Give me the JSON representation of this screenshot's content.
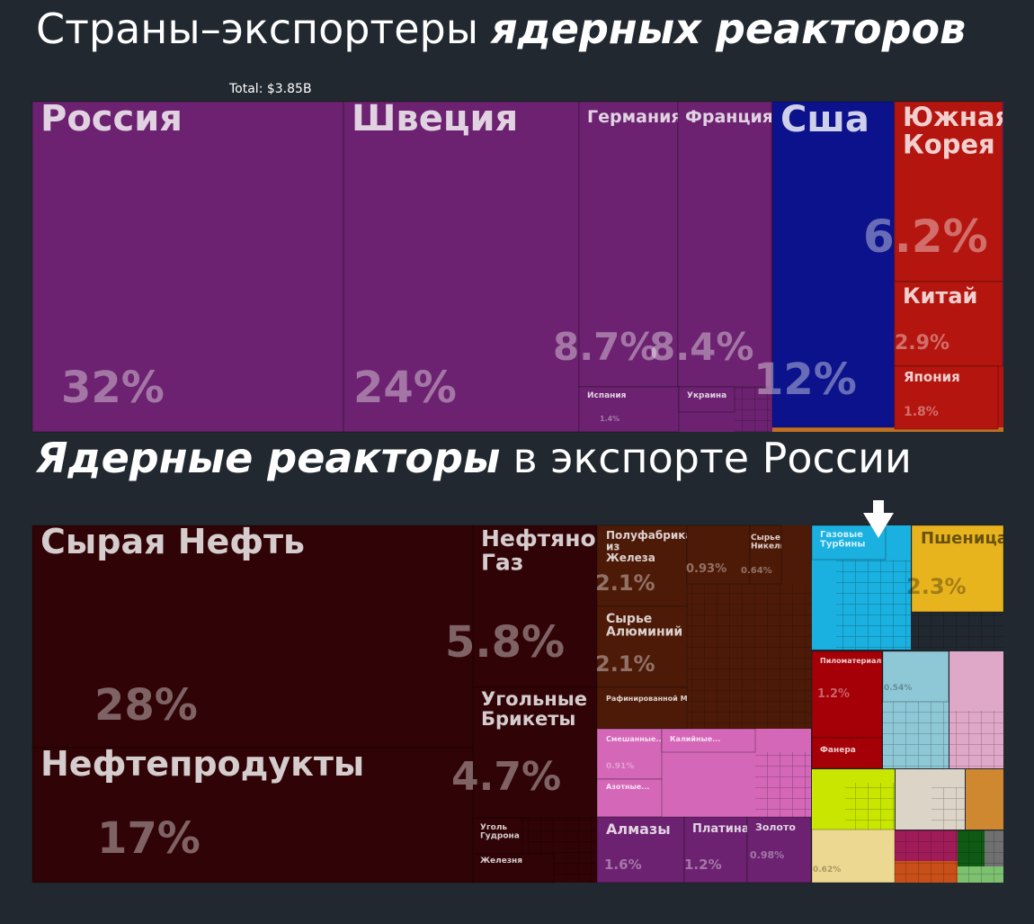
{
  "chart_data": [
    {
      "type": "treemap",
      "title": [
        "Страны–экспортеры",
        "ядерных реакторов"
      ],
      "title_emphasis": [
        false,
        true
      ],
      "total": "Total: $3.85B",
      "items": [
        {
          "name": "Россия",
          "value": 32,
          "value_label": "32%",
          "color": "#6c2270"
        },
        {
          "name": "Швеция",
          "value": 24,
          "value_label": "24%",
          "color": "#6c2270"
        },
        {
          "name": "Германия",
          "value": 8.7,
          "value_label": "8.7%",
          "color": "#6c2270"
        },
        {
          "name": "Франция",
          "value": 8.4,
          "value_label": "8.4%",
          "color": "#6c2270"
        },
        {
          "name": "Испания",
          "value": 1.4,
          "value_label": "1.4%",
          "color": "#6c2270"
        },
        {
          "name": "Украина",
          "value": 0.8,
          "color": "#6c2270"
        },
        {
          "name": "Сша",
          "value": 12,
          "value_label": "12%",
          "color": "#0c128c"
        },
        {
          "name": "Южная Корея",
          "value": 6.2,
          "value_label": "6.2%",
          "color": "#b5150f"
        },
        {
          "name": "Китай",
          "value": 2.9,
          "value_label": "2.9%",
          "color": "#b5150f"
        },
        {
          "name": "Япония",
          "value": 1.8,
          "value_label": "1.8%",
          "color": "#b5150f"
        }
      ]
    },
    {
      "type": "treemap",
      "title": [
        "Ядерные реакторы",
        "в экспорте России"
      ],
      "title_emphasis": [
        true,
        false
      ],
      "items": [
        {
          "name": "Сырая Нефть",
          "value": 28,
          "value_label": "28%",
          "color": "#300306"
        },
        {
          "name": "Нефтепродукты",
          "value": 17,
          "value_label": "17%",
          "color": "#300306"
        },
        {
          "name": "Нефтяной Газ",
          "value": 5.8,
          "value_label": "5.8%",
          "color": "#300306"
        },
        {
          "name": "Угольные Брикеты",
          "value": 4.7,
          "value_label": "4.7%",
          "color": "#300306"
        },
        {
          "name": "Уголь Гудрона",
          "value": 0.5,
          "color": "#300306"
        },
        {
          "name": "Железня",
          "value": 0.4,
          "color": "#300306"
        },
        {
          "name": "Полуфабрикаты из Железа",
          "value": 2.1,
          "value_label": "2.1%",
          "color": "#4e1a08"
        },
        {
          "name": null,
          "value": 0.93,
          "value_label": "0.93%",
          "color": "#4e1a08"
        },
        {
          "name": "Сырье Никель",
          "value": 0.64,
          "value_label": "0.64%",
          "color": "#4e1a08"
        },
        {
          "name": "Сырье Алюминий",
          "value": 2.1,
          "value_label": "2.1%",
          "color": "#4e1a08"
        },
        {
          "name": "Рафинированной Меди",
          "value": 0.5,
          "color": "#4e1a08"
        },
        {
          "name": "Газовые Турбины",
          "value": 0.3,
          "color": "#1ab0e0"
        },
        {
          "name": "Пшеница",
          "value": 2.3,
          "value_label": "2.3%",
          "color": "#e8b41e"
        },
        {
          "name": "Пиломатериалы",
          "value": 1.2,
          "value_label": "1.2%",
          "color": "#a50008"
        },
        {
          "name": null,
          "value": 0.54,
          "value_label": "0.54%",
          "color": "#8ec8d6"
        },
        {
          "name": "Фанера",
          "value": 0.3,
          "color": "#a50008"
        },
        {
          "name": "Смешанные...",
          "value": 0.91,
          "value_label": "0.91%",
          "color": "#d467b8"
        },
        {
          "name": "Калийные...",
          "value": 0.9,
          "color": "#d467b8"
        },
        {
          "name": "Азотные...",
          "value": 0.5,
          "color": "#d467b8"
        },
        {
          "name": "Алмазы",
          "value": 1.6,
          "value_label": "1.6%",
          "color": "#6c2270"
        },
        {
          "name": "Платина",
          "value": 1.2,
          "value_label": "1.2%",
          "color": "#6c2270"
        },
        {
          "name": "Золото",
          "value": 0.98,
          "value_label": "0.98%",
          "color": "#6c2270"
        },
        {
          "name": null,
          "value": 0.62,
          "value_label": "0.62%",
          "color": "#ecd890"
        }
      ]
    }
  ]
}
